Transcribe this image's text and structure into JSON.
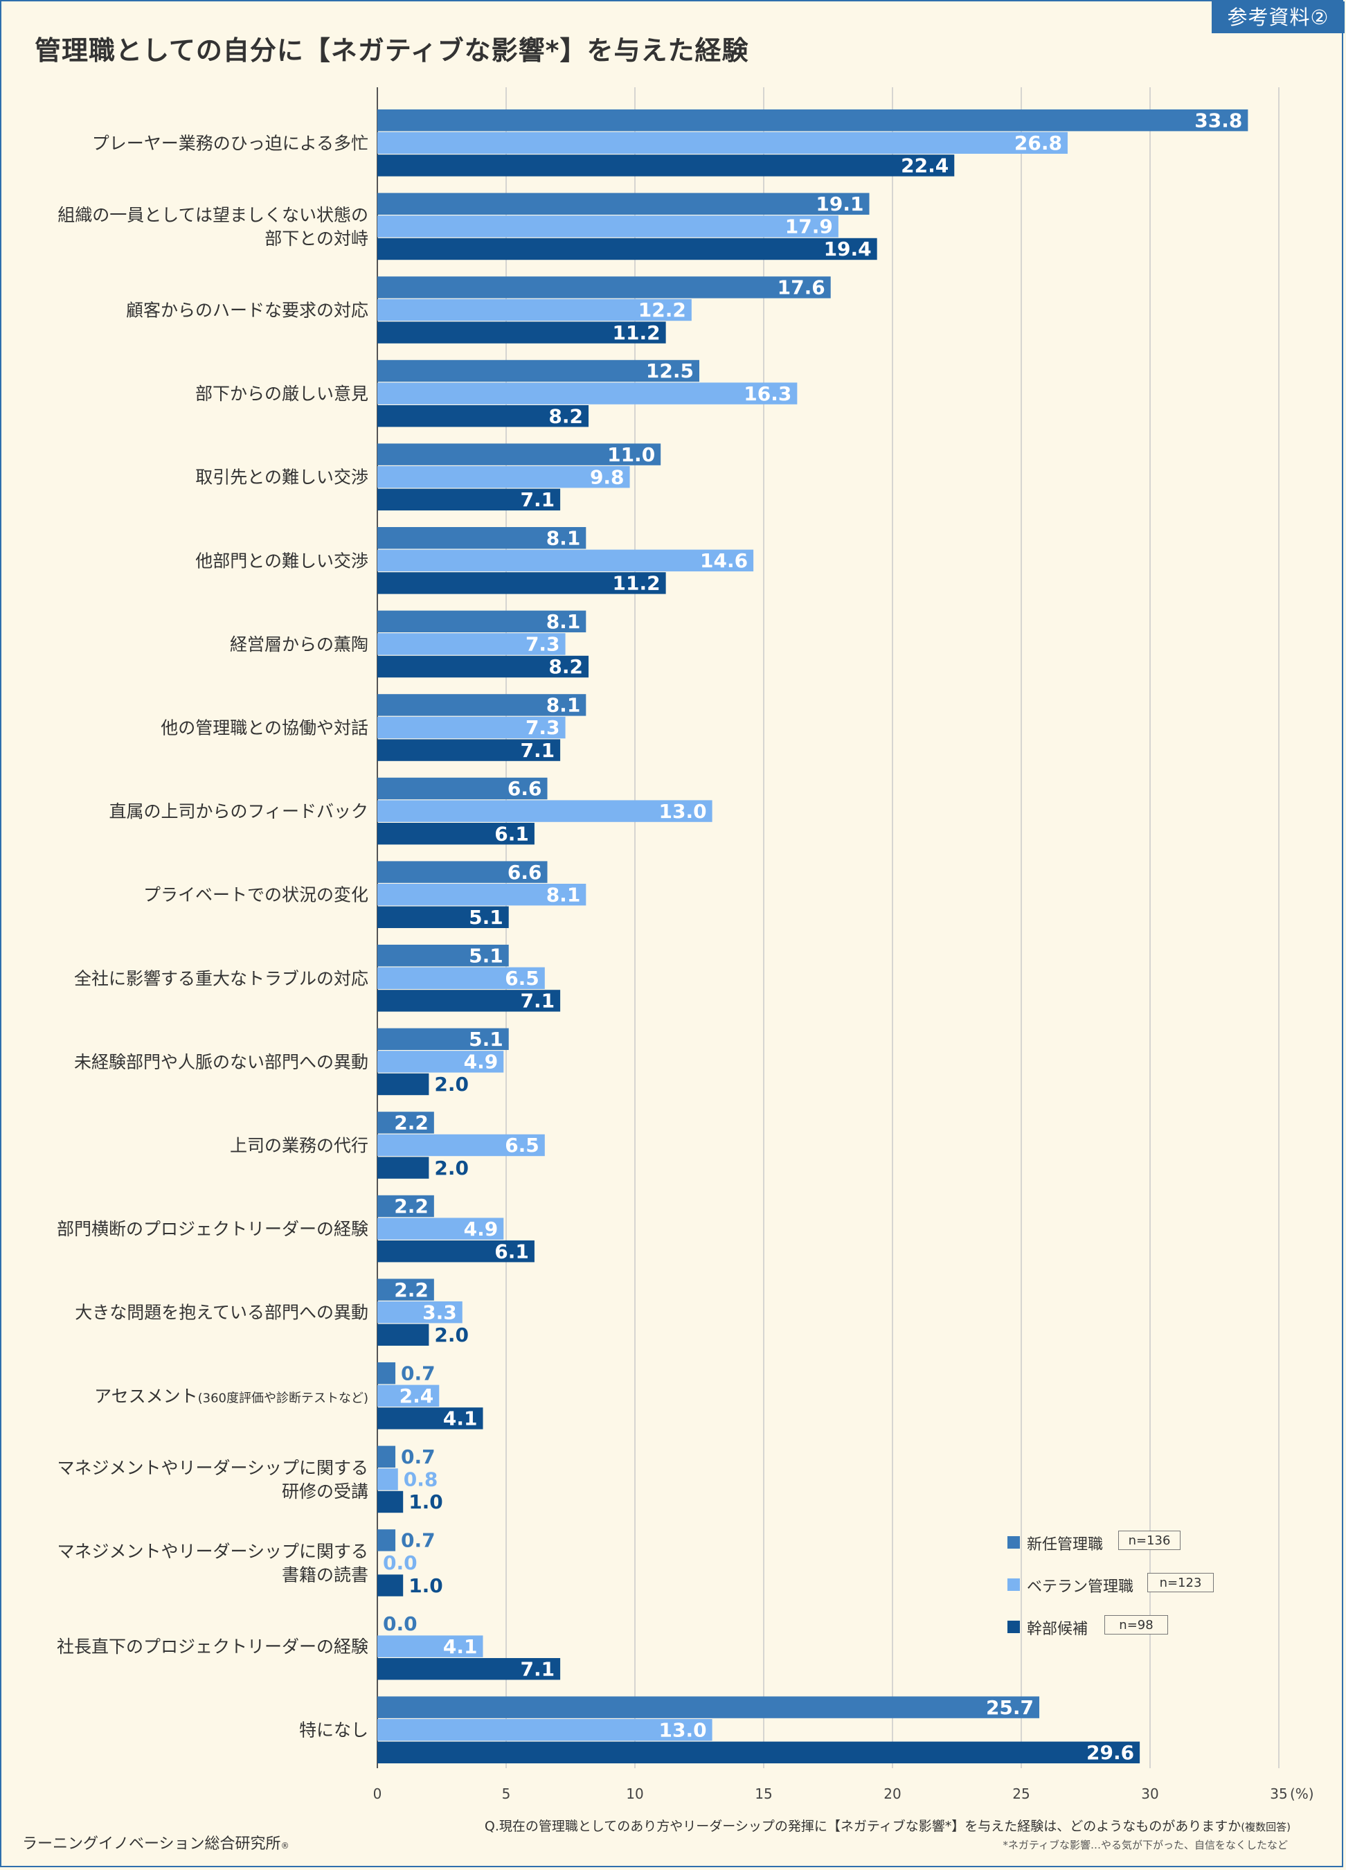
{
  "ref_tag": "参考資料②",
  "title": "管理職としての自分に【ネガティブな影響*】を与えた経験",
  "question": "Q.現在の管理職としてのあり方やリーダーシップの発揮に【ネガティブな影響*】を与えた経験は、どのようなものがありますか",
  "question_suffix": "(複数回答)",
  "footnote": "*ネガティブな影響…やる気が下がった、自信をなくしたなど",
  "credit": "ラーニングイノベーション総合研究所",
  "credit_mark": "®",
  "colors": {
    "series1": "#3a7ab8",
    "series2": "#7bb3f2",
    "series3": "#0e4f8d"
  },
  "legend": [
    {
      "name": "新任管理職",
      "n": "n=136"
    },
    {
      "name": "ベテラン管理職",
      "n": "n=123"
    },
    {
      "name": "幹部候補",
      "n": "n=98"
    }
  ],
  "chart_data": {
    "type": "bar",
    "orientation": "horizontal",
    "title": "管理職としての自分に【ネガティブな影響*】を与えた経験",
    "xlabel": "",
    "unit": "(%)",
    "xlim": [
      0,
      35
    ],
    "xticks": [
      "0",
      "5",
      "10",
      "15",
      "20",
      "25",
      "30",
      "35"
    ],
    "grid": true,
    "legend_position": "bottom-right",
    "categories": [
      [
        "プレーヤー業務のひっ迫による多忙"
      ],
      [
        "組織の一員としては望ましくない状態の",
        "部下との対峙"
      ],
      [
        "顧客からのハードな要求の対応"
      ],
      [
        "部下からの厳しい意見"
      ],
      [
        "取引先との難しい交渉"
      ],
      [
        "他部門との難しい交渉"
      ],
      [
        "経営層からの薫陶"
      ],
      [
        "他の管理職との協働や対話"
      ],
      [
        "直属の上司からのフィードバック"
      ],
      [
        "プライベートでの状況の変化"
      ],
      [
        "全社に影響する重大なトラブルの対応"
      ],
      [
        "未経験部門や人脈のない部門への異動"
      ],
      [
        "上司の業務の代行"
      ],
      [
        "部門横断のプロジェクトリーダーの経験"
      ],
      [
        "大きな問題を抱えている部門への異動"
      ],
      [
        "アセスメント",
        "(360度評価や診断テストなど)"
      ],
      [
        "マネジメントやリーダーシップに関する",
        "研修の受講"
      ],
      [
        "マネジメントやリーダーシップに関する",
        "書籍の読書"
      ],
      [
        "社長直下のプロジェクトリーダーの経験"
      ],
      [
        "特になし"
      ]
    ],
    "series": [
      {
        "name": "新任管理職",
        "values": [
          33.8,
          19.1,
          17.6,
          12.5,
          11.0,
          8.1,
          8.1,
          8.1,
          6.6,
          6.6,
          5.1,
          5.1,
          2.2,
          2.2,
          2.2,
          0.7,
          0.7,
          0.7,
          0.0,
          25.7
        ]
      },
      {
        "name": "ベテラン管理職",
        "values": [
          26.8,
          17.9,
          12.2,
          16.3,
          9.8,
          14.6,
          7.3,
          7.3,
          13.0,
          8.1,
          6.5,
          4.9,
          6.5,
          4.9,
          3.3,
          2.4,
          0.8,
          0.0,
          4.1,
          13.0
        ]
      },
      {
        "name": "幹部候補",
        "values": [
          22.4,
          19.4,
          11.2,
          8.2,
          7.1,
          11.2,
          8.2,
          7.1,
          6.1,
          5.1,
          7.1,
          2.0,
          2.0,
          6.1,
          2.0,
          4.1,
          1.0,
          1.0,
          7.1,
          29.6
        ]
      }
    ]
  }
}
